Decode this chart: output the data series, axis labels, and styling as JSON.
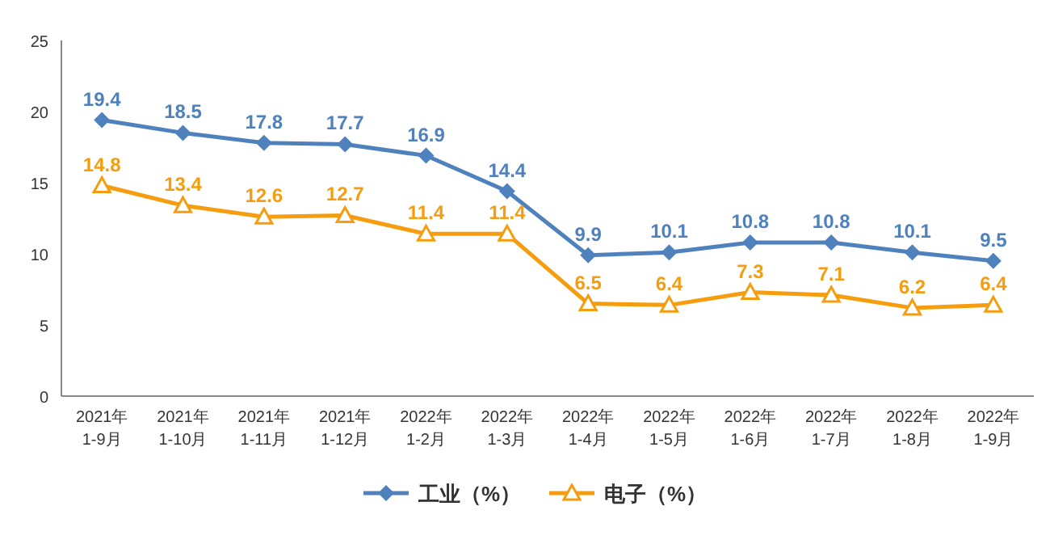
{
  "chart_data": {
    "type": "line",
    "categories": [
      "2021年 1-9月",
      "2021年 1-10月",
      "2021年 1-11月",
      "2021年 1-12月",
      "2022年 1-2月",
      "2022年 1-3月",
      "2022年 1-4月",
      "2022年 1-5月",
      "2022年 1-6月",
      "2022年 1-7月",
      "2022年 1-8月",
      "2022年 1-9月"
    ],
    "series": [
      {
        "name": "工业（%）",
        "color": "#4f81bd",
        "marker": "diamond",
        "values": [
          19.4,
          18.5,
          17.8,
          17.7,
          16.9,
          14.4,
          9.9,
          10.1,
          10.8,
          10.8,
          10.1,
          9.5
        ]
      },
      {
        "name": "电子（%）",
        "color": "#f59d0e",
        "marker": "triangle",
        "values": [
          14.8,
          13.4,
          12.6,
          12.7,
          11.4,
          11.4,
          6.5,
          6.4,
          7.3,
          7.1,
          6.2,
          6.4
        ]
      }
    ],
    "ylim": [
      0,
      25
    ],
    "yticks": [
      0,
      5,
      10,
      15,
      20,
      25
    ],
    "grid": false,
    "legend": "bottom",
    "data_labels": true,
    "line_style": "solid"
  }
}
